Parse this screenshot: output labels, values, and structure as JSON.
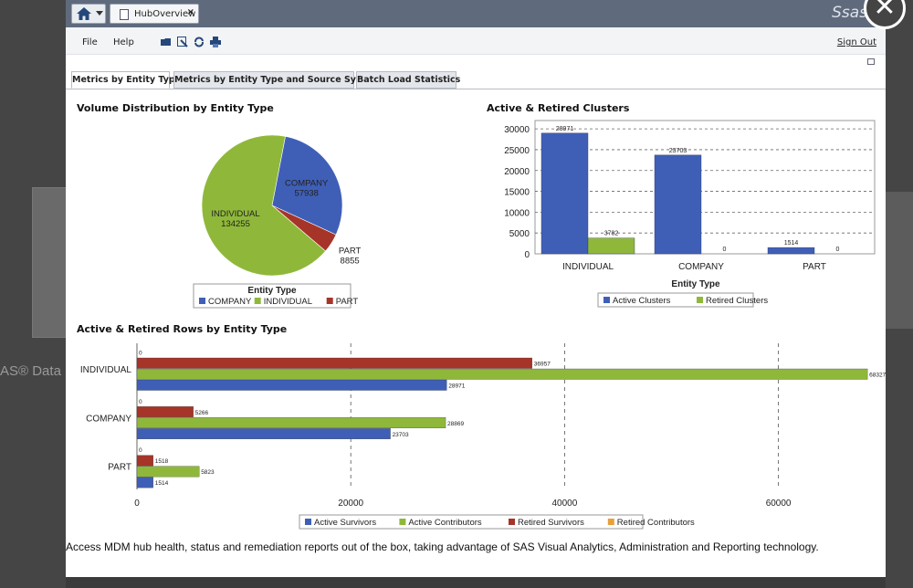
{
  "background": {
    "text": "AS® Data"
  },
  "window": {
    "doc_tab_label": "HubOverview",
    "doc_tab_close": "×",
    "brand": "Ssas",
    "close_glyph": "✕"
  },
  "menu": {
    "file": "File",
    "help": "Help",
    "sign_out": "Sign Out"
  },
  "tabs": [
    {
      "label": "Metrics by Entity Type",
      "active": true
    },
    {
      "label": "Metrics by Entity Type and Source System",
      "active": false
    },
    {
      "label": "Batch Load Statistics",
      "active": false
    }
  ],
  "caption": "Access MDM hub health, status and remediation reports out of the box, taking advantage of SAS Visual Analytics, Administration and Reporting technology.",
  "colors": {
    "blue": "#3f5fb7",
    "green": "#8fb83b",
    "red": "#a63428",
    "orange": "#e8a03a"
  },
  "chart_data": [
    {
      "type": "pie",
      "title": "Volume Distribution by Entity Type",
      "legend_title": "Entity Type",
      "slices": [
        {
          "label": "COMPANY",
          "value": 57938,
          "color": "#3f5fb7"
        },
        {
          "label": "PART",
          "value": 8855,
          "color": "#a63428"
        },
        {
          "label": "INDIVIDUAL",
          "value": 134255,
          "color": "#8fb83b"
        }
      ]
    },
    {
      "type": "bar",
      "title": "Active & Retired Clusters",
      "xlabel": "Entity Type",
      "categories": [
        "INDIVIDUAL",
        "COMPANY",
        "PART"
      ],
      "yticks": [
        "0",
        "5000",
        "10000",
        "15000",
        "20000",
        "25000",
        "30000"
      ],
      "ylim": [
        0,
        32000
      ],
      "series": [
        {
          "name": "Active Clusters",
          "values": [
            28971,
            23703,
            1514
          ],
          "labels": [
            "28971",
            "23703",
            "1514"
          ],
          "color": "#3f5fb7"
        },
        {
          "name": "Retired Clusters",
          "values": [
            3782,
            0,
            0
          ],
          "labels": [
            "3782",
            "0",
            "0"
          ],
          "color": "#8fb83b"
        }
      ]
    },
    {
      "type": "bar",
      "orientation": "horizontal",
      "title": "Active & Retired Rows by Entity Type",
      "categories": [
        "INDIVIDUAL",
        "COMPANY",
        "PART"
      ],
      "xticks": [
        "0",
        "20000",
        "40000",
        "60000"
      ],
      "xlim": [
        0,
        69000
      ],
      "series": [
        {
          "name": "Active Survivors",
          "values": [
            28971,
            23703,
            1514
          ],
          "labels": [
            "28971",
            "23703",
            "1514"
          ],
          "color": "#3f5fb7"
        },
        {
          "name": "Active Contributors",
          "values": [
            68327,
            28869,
            5823
          ],
          "labels": [
            "68327",
            "28869",
            "5823"
          ],
          "color": "#8fb83b"
        },
        {
          "name": "Retired Survivors",
          "values": [
            36957,
            5266,
            1518
          ],
          "labels": [
            "36957",
            "5266",
            "1518"
          ],
          "color": "#a63428"
        },
        {
          "name": "Retired Contributors",
          "values": [
            0,
            0,
            0
          ],
          "labels": [
            "0",
            "0",
            "0"
          ],
          "color": "#e8a03a"
        }
      ]
    }
  ]
}
